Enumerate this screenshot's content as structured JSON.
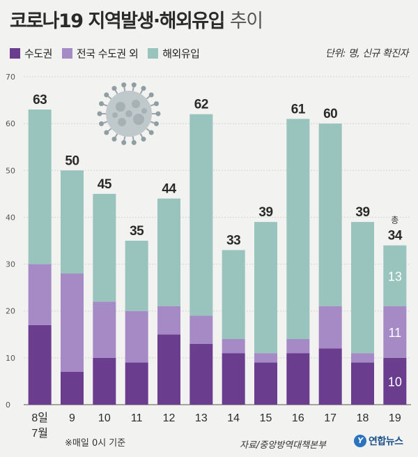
{
  "header": {
    "title_main": "코로나19 지역발생·해외유입",
    "title_suffix": "추이"
  },
  "legend": {
    "items": [
      {
        "label": "수도권",
        "color": "#6a3d8f"
      },
      {
        "label": "전국 수도권 외",
        "color": "#a68ac5"
      },
      {
        "label": "해외유입",
        "color": "#99c4bd"
      }
    ]
  },
  "unit_label": "단위: 명, 신규 확진자",
  "chart_data": {
    "type": "bar",
    "stacked": true,
    "categories": [
      "8일",
      "9",
      "10",
      "11",
      "12",
      "13",
      "14",
      "15",
      "16",
      "17",
      "18",
      "19"
    ],
    "category_sublabel": "7월",
    "series": [
      {
        "name": "수도권",
        "values": [
          17,
          7,
          10,
          9,
          15,
          13,
          11,
          9,
          11,
          12,
          9,
          10
        ],
        "color": "#6a3d8f"
      },
      {
        "name": "전국 수도권 외",
        "values": [
          13,
          21,
          12,
          11,
          6,
          6,
          3,
          2,
          3,
          9,
          2,
          11
        ],
        "color": "#a68ac5"
      },
      {
        "name": "해외유입",
        "values": [
          33,
          22,
          23,
          15,
          23,
          43,
          19,
          28,
          47,
          39,
          28,
          13
        ],
        "color": "#99c4bd"
      }
    ],
    "totals": [
      "63",
      "50",
      "45",
      "35",
      "44",
      "62",
      "33",
      "39",
      "61",
      "60",
      "39",
      "34"
    ],
    "total_prefix_last": "총",
    "last_bar_segment_labels": [
      "10",
      "11",
      "13"
    ],
    "y_ticks": [
      "0",
      "10",
      "20",
      "30",
      "40",
      "50",
      "60",
      "70"
    ],
    "ylim": [
      0,
      70
    ],
    "grid": true
  },
  "footnote": "※매일 0시 기준",
  "source": "자료/중앙방역대책본부",
  "logo": {
    "text": "연합뉴스",
    "mark": "Y"
  }
}
